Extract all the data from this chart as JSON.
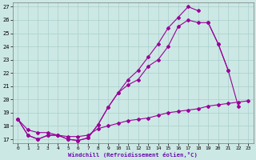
{
  "xlabel": "Windchill (Refroidissement éolien,°C)",
  "bg_color": "#cce8e4",
  "grid_color": "#aacfcc",
  "line_color": "#990099",
  "xlim": [
    -0.5,
    23.5
  ],
  "ylim": [
    16.7,
    27.3
  ],
  "yticks": [
    17,
    18,
    19,
    20,
    21,
    22,
    23,
    24,
    25,
    26,
    27
  ],
  "xticks": [
    0,
    1,
    2,
    3,
    4,
    5,
    6,
    7,
    8,
    9,
    10,
    11,
    12,
    13,
    14,
    15,
    16,
    17,
    18,
    19,
    20,
    21,
    22,
    23
  ],
  "line1_x": [
    0,
    1,
    2,
    3,
    4,
    5,
    6,
    7,
    8,
    9,
    10,
    11,
    12,
    13,
    14,
    15,
    16,
    17,
    18,
    19,
    20,
    21,
    22,
    23
  ],
  "line1_y": [
    18.5,
    17.3,
    17.0,
    17.3,
    17.3,
    17.0,
    16.9,
    17.1,
    18.1,
    19.4,
    20.5,
    21.1,
    21.5,
    22.5,
    23.0,
    24.0,
    25.5,
    26.0,
    25.8,
    25.8,
    24.2,
    22.2,
    null,
    null
  ],
  "line2_x": [
    0,
    1,
    2,
    3,
    4,
    5,
    6,
    7,
    8,
    9,
    10,
    11,
    12,
    13,
    14,
    15,
    16,
    17,
    18
  ],
  "line2_y": [
    18.5,
    17.3,
    17.0,
    17.3,
    17.3,
    17.0,
    16.9,
    17.1,
    18.1,
    19.4,
    20.5,
    21.5,
    22.2,
    23.2,
    24.2,
    25.4,
    26.2,
    27.0,
    26.7
  ],
  "line3_x": [
    19,
    20,
    21,
    22,
    23
  ],
  "line3_y": [
    25.8,
    24.2,
    22.2,
    19.5,
    null
  ],
  "line4_x": [
    0,
    1,
    2,
    3,
    4,
    5,
    6,
    7,
    8,
    9,
    10,
    11,
    12,
    13,
    14,
    15,
    16,
    17,
    18,
    19,
    20,
    21,
    22,
    23
  ],
  "line4_y": [
    18.5,
    17.7,
    17.5,
    17.5,
    17.3,
    17.2,
    17.2,
    17.3,
    17.8,
    18.0,
    18.2,
    18.4,
    18.5,
    18.6,
    18.8,
    19.0,
    19.1,
    19.2,
    19.3,
    19.5,
    19.6,
    19.7,
    19.8,
    19.9
  ]
}
